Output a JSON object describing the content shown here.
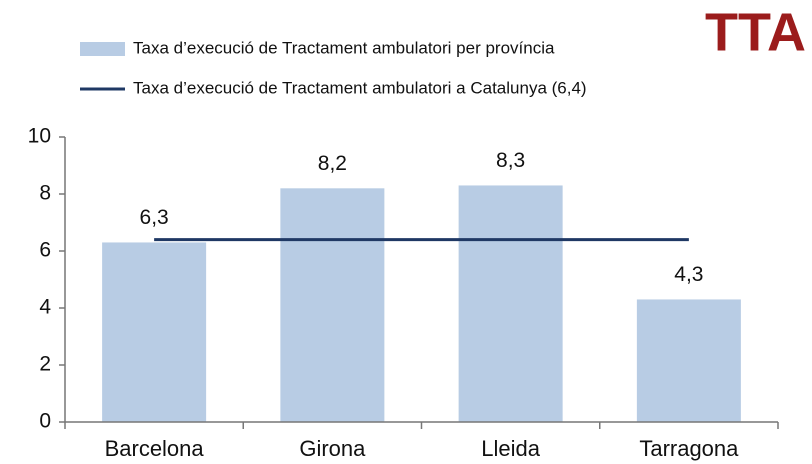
{
  "chart_data": {
    "type": "bar",
    "annotation": "TTA",
    "annotation_color": "#9b1c1c",
    "categories": [
      "Barcelona",
      "Girona",
      "Lleida",
      "Tarragona"
    ],
    "series": [
      {
        "name": "Taxa d’execució de Tractament ambulatori per província",
        "color": "#b8cce4",
        "values": [
          6.3,
          8.2,
          8.3,
          4.3
        ],
        "value_labels": [
          "6,3",
          "8,2",
          "8,3",
          "4,3"
        ]
      }
    ],
    "reference_line": {
      "name": "Taxa d’execució de Tractament ambulatori a Catalunya (6,4)",
      "color": "#1f3864",
      "value": 6.4
    },
    "ylim": [
      0,
      10
    ],
    "yticks": [
      0,
      2,
      4,
      6,
      8,
      10
    ]
  }
}
